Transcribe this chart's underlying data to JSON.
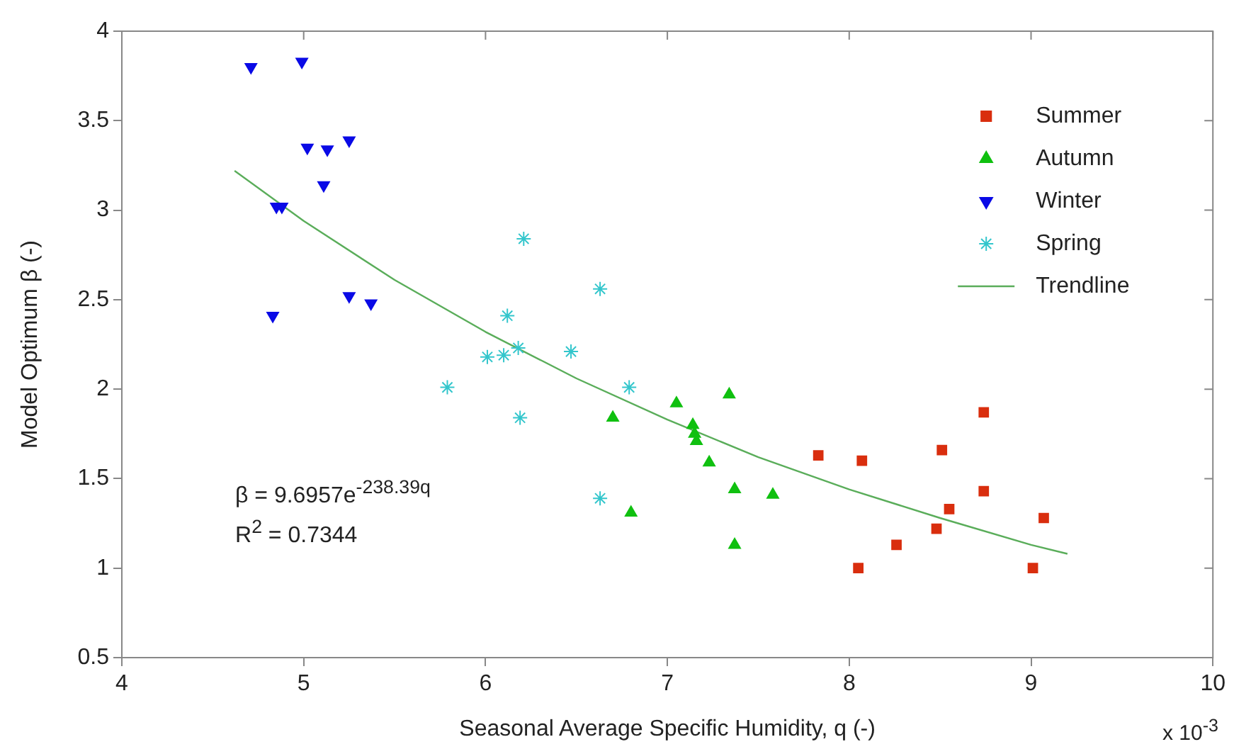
{
  "chart_data": {
    "type": "scatter",
    "xlabel": "Seasonal Average Specific Humidity, q (-)",
    "ylabel": "Model Optimum β (-)",
    "xlim": [
      4,
      10
    ],
    "xticks": [
      4,
      5,
      6,
      7,
      8,
      9,
      10
    ],
    "ylim": [
      0.5,
      4
    ],
    "yticks": [
      0.5,
      1,
      1.5,
      2,
      2.5,
      3,
      3.5,
      4
    ],
    "grid": false,
    "legend": "top right",
    "annotations": [
      "β = 9.6957e$^{-238.39q}$",
      "R$^{2}$ = 0.7344",
      "x 10$^{-3}$"
    ],
    "series": [
      {
        "name": "Summer",
        "color": "#d92e0e",
        "marker": "square",
        "x": [
          8.05,
          7.83,
          8.07,
          8.26,
          8.48,
          8.51,
          8.55,
          8.74,
          8.74,
          9.01,
          9.07
        ],
        "values": [
          1.0,
          1.63,
          1.6,
          1.13,
          1.22,
          1.66,
          1.33,
          1.43,
          1.87,
          1.0,
          1.28
        ]
      },
      {
        "name": "Autumn",
        "color": "#10c010",
        "marker": "triangle",
        "x": [
          6.7,
          6.8,
          7.05,
          7.14,
          7.15,
          7.16,
          7.23,
          7.34,
          7.37,
          7.37,
          7.58
        ],
        "values": [
          1.84,
          1.31,
          1.92,
          1.8,
          1.75,
          1.71,
          1.59,
          1.97,
          1.44,
          1.13,
          1.41
        ]
      },
      {
        "name": "Winter",
        "color": "#0a0ae6",
        "marker": "triangle_down",
        "x": [
          4.71,
          4.99,
          5.02,
          5.13,
          5.25,
          5.11,
          4.85,
          4.88,
          4.83,
          5.25,
          5.37
        ],
        "values": [
          3.8,
          3.83,
          3.35,
          3.34,
          3.39,
          3.14,
          3.02,
          3.02,
          2.41,
          2.52,
          2.48
        ]
      },
      {
        "name": "Spring",
        "color": "#33c6cc",
        "marker": "cross",
        "x": [
          5.79,
          6.01,
          6.1,
          6.12,
          6.18,
          6.19,
          6.21,
          6.47,
          6.63,
          6.79,
          6.63
        ],
        "values": [
          2.01,
          2.18,
          2.19,
          2.41,
          2.23,
          1.84,
          2.84,
          2.21,
          2.56,
          2.01,
          1.39
        ]
      },
      {
        "name": "Trendline",
        "type": "line",
        "color": "#5aad5a",
        "marker": "none",
        "line_style": "solid",
        "x": [
          4.62,
          5,
          5.5,
          6,
          6.5,
          7,
          7.5,
          8,
          8.5,
          9,
          9.2
        ],
        "values": [
          3.22,
          2.94,
          2.61,
          2.32,
          2.06,
          1.83,
          1.62,
          1.44,
          1.28,
          1.13,
          1.08
        ]
      }
    ]
  }
}
